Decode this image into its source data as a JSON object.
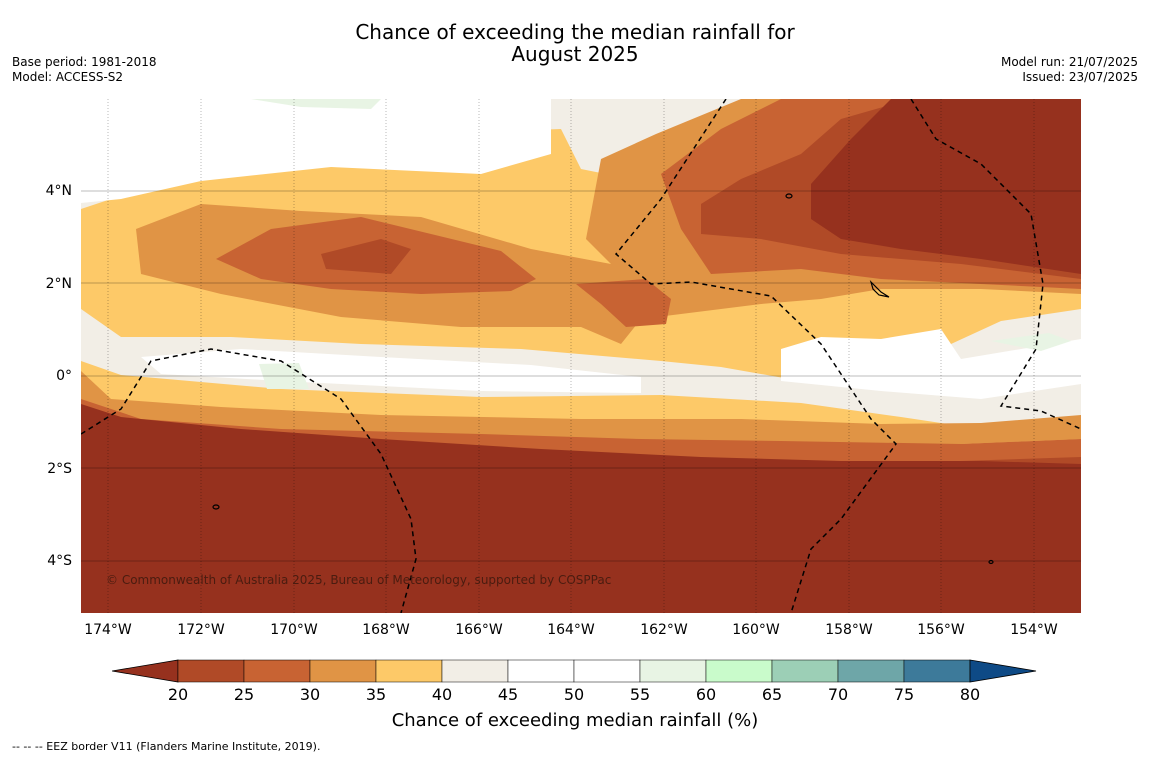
{
  "title": [
    "Chance of exceeding the median rainfall for",
    "August 2025"
  ],
  "meta_left": [
    "Base period: 1981-2018",
    "Model: ACCESS-S2"
  ],
  "meta_right": [
    "Model run: 21/07/2025",
    "Issued: 23/07/2025"
  ],
  "map": {
    "lon_ticks": [
      "174°W",
      "172°W",
      "170°W",
      "168°W",
      "166°W",
      "164°W",
      "162°W",
      "160°W",
      "158°W",
      "156°W",
      "154°W"
    ],
    "lat_ticks": [
      "4°N",
      "2°N",
      "0°",
      "2°S",
      "4°S"
    ],
    "copyright": "© Commonwealth of Australia 2025, Bureau of Meteorology, supported by COSPPac",
    "colors": {
      "lt20": "#96311e",
      "20-25": "#b04a27",
      "25-30": "#c86333",
      "30-35": "#e09445",
      "35-40": "#fdc968",
      "40-45": "#f2eee6",
      "45-55": "#ffffff",
      "55-60": "#e8f4e4"
    }
  },
  "colorbar": {
    "ticks": [
      "20",
      "25",
      "30",
      "35",
      "40",
      "45",
      "50",
      "55",
      "60",
      "65",
      "70",
      "75",
      "80"
    ],
    "colors": [
      "#96311e",
      "#b04a27",
      "#c86333",
      "#e09445",
      "#fdc968",
      "#f2eee6",
      "#ffffff",
      "#ffffff",
      "#e8f4e4",
      "#c9fbcb",
      "#9ccfb6",
      "#6ea6a8",
      "#3d7a9a",
      "#0e4a86"
    ],
    "label": "Chance of exceeding median rainfall (%)"
  },
  "footnote": "--  --  -- EEZ border V11 (Flanders Marine Institute, 2019)."
}
